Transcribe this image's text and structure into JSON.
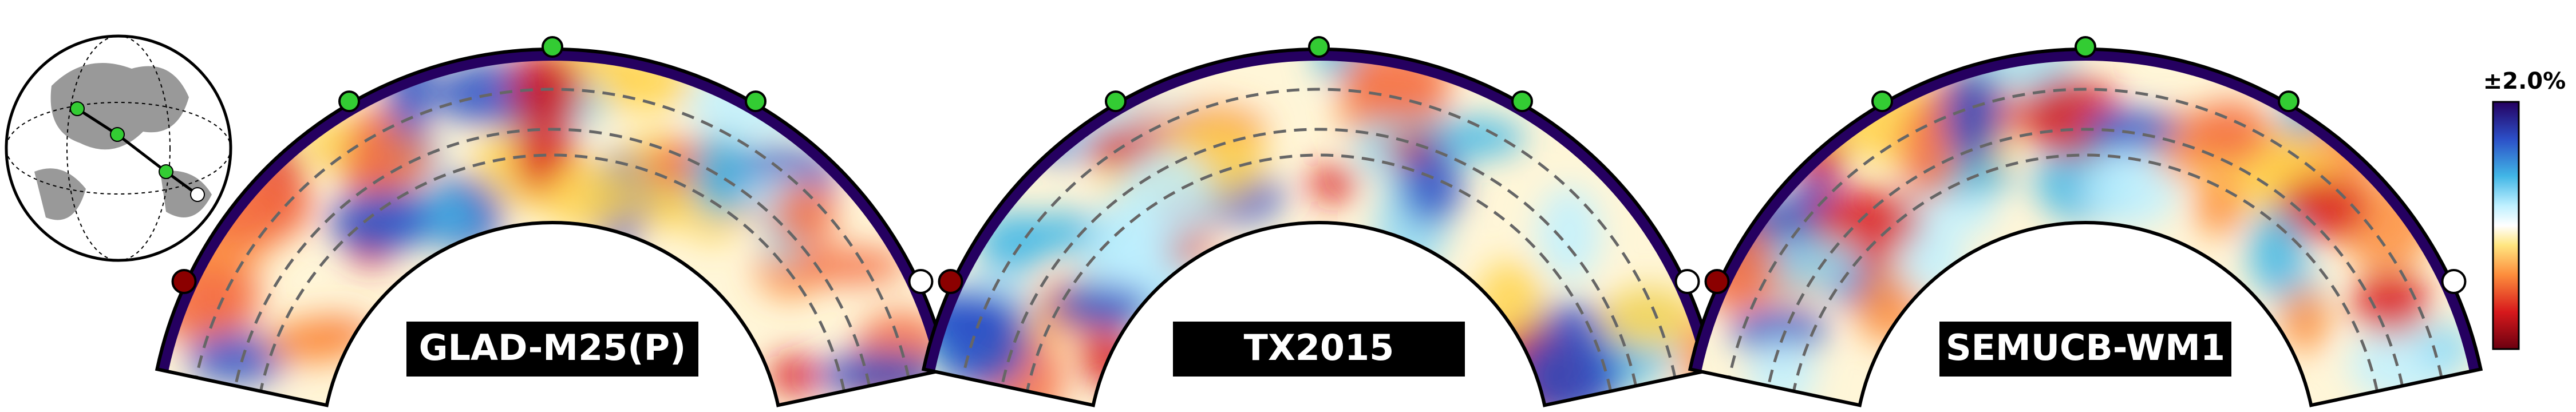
{
  "panels": [
    {
      "label": "GLAD-M25(P)"
    },
    {
      "label": "TX2015"
    },
    {
      "label": "SEMUCB-WM1"
    }
  ],
  "colorbar": {
    "label": "±2.0%"
  }
}
